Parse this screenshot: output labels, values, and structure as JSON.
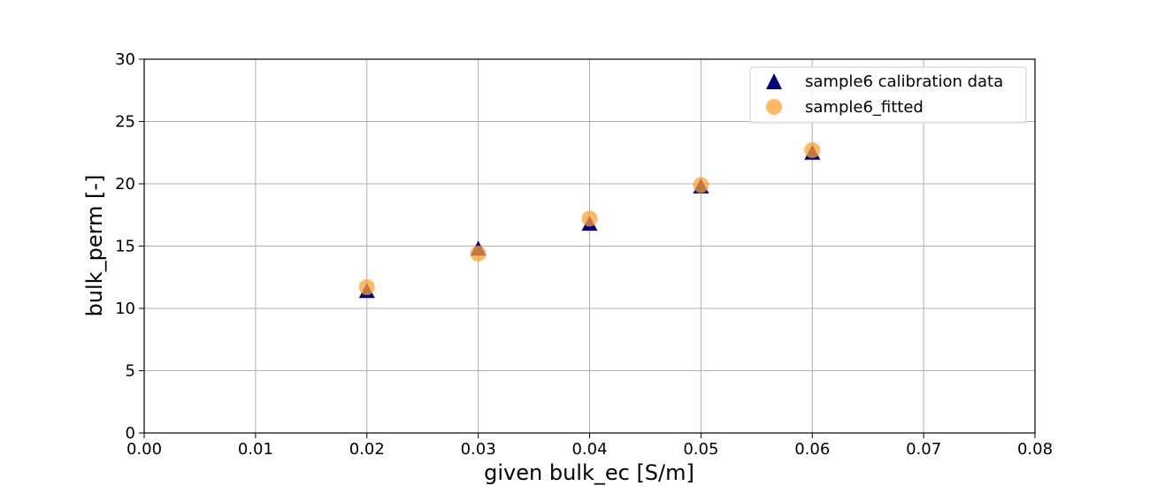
{
  "chart_data": {
    "type": "scatter",
    "xlabel": "given bulk_ec [S/m]",
    "ylabel": "bulk_perm [-]",
    "xlim": [
      0,
      0.08
    ],
    "ylim": [
      0,
      30
    ],
    "x_ticks": [
      "0.00",
      "0.01",
      "0.02",
      "0.03",
      "0.04",
      "0.05",
      "0.06",
      "0.07",
      "0.08"
    ],
    "y_ticks": [
      "0",
      "5",
      "10",
      "15",
      "20",
      "25",
      "30"
    ],
    "grid": true,
    "legend_position": "top-right",
    "series": [
      {
        "name": "sample6 calibration data",
        "marker": "triangle",
        "color": "#000080",
        "x": [
          0.02,
          0.03,
          0.04,
          0.05,
          0.06
        ],
        "y": [
          11.4,
          14.8,
          16.8,
          19.8,
          22.5
        ]
      },
      {
        "name": "sample6_fitted",
        "marker": "circle",
        "color": "#ffa232",
        "x": [
          0.02,
          0.03,
          0.04,
          0.05,
          0.06
        ],
        "y": [
          11.7,
          14.4,
          17.2,
          19.9,
          22.7
        ]
      }
    ]
  }
}
